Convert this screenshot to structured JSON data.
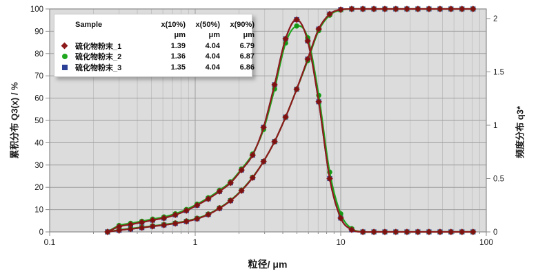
{
  "legend": {
    "headers": [
      "Sample",
      "x(10%)",
      "x(50%)",
      "x(90%)"
    ],
    "units": [
      "μm",
      "μm",
      "μm"
    ],
    "rows": [
      {
        "name": "硫化物粉末_1",
        "x10": "1.39",
        "x50": "4.04",
        "x90": "6.79",
        "marker": "diamond",
        "color": "#8e1b1b"
      },
      {
        "name": "硫化物粉末_2",
        "x10": "1.36",
        "x50": "4.04",
        "x90": "6.87",
        "marker": "circle",
        "color": "#1fa81f"
      },
      {
        "name": "硫化物粉末_3",
        "x10": "1.35",
        "x50": "4.04",
        "x90": "6.86",
        "marker": "square",
        "color": "#2b3f97"
      }
    ]
  },
  "colors": {
    "plot_bg": "#dcdcdc",
    "grid_major": "#9e9e9e",
    "grid_minor": "#c2c2c2",
    "frame": "#8a8a8a",
    "tick_text": "#1a1a1a"
  },
  "chart_data": {
    "type": "line",
    "x_axis": {
      "label": "粒径/ μm",
      "scale": "log",
      "min": 0.1,
      "max": 100,
      "major_ticks": [
        0.1,
        1,
        10,
        100
      ],
      "major_labels": [
        "0.1",
        "1",
        "10",
        "100"
      ],
      "minor_ticks": [
        0.2,
        0.3,
        0.4,
        0.5,
        0.6,
        0.7,
        0.8,
        0.9,
        2,
        3,
        4,
        5,
        6,
        7,
        8,
        9,
        20,
        30,
        40,
        50,
        60,
        70,
        80,
        90
      ]
    },
    "y_left": {
      "label": "累积分布 Q3(x) / %",
      "min": 0,
      "max": 100,
      "ticks": [
        0,
        10,
        20,
        30,
        40,
        50,
        60,
        70,
        80,
        90,
        100
      ]
    },
    "y_right": {
      "label": "频度分布 q3*",
      "min": 0,
      "max": 2.09,
      "ticks": [
        0,
        0.5,
        1,
        1.5,
        2
      ],
      "tick_labels": [
        "0",
        "0.5",
        "1",
        "1.5",
        "2"
      ]
    },
    "x": [
      0.25,
      0.3,
      0.36,
      0.43,
      0.51,
      0.61,
      0.73,
      0.87,
      1.03,
      1.23,
      1.47,
      1.75,
      2.08,
      2.48,
      2.95,
      3.51,
      4.18,
      4.98,
      5.93,
      7.06,
      8.4,
      10.0,
      11.9,
      14.2,
      16.9,
      20.1,
      23.9,
      28.5,
      33.9,
      40.4,
      48.1,
      57.2,
      68.1,
      81.1
    ],
    "series": [
      {
        "name": "硫化物粉末_1",
        "color": "#8e1b1b",
        "marker": "diamond",
        "marker_color": "#7c1212",
        "Q3": [
          0,
          0.7,
          1.3,
          1.9,
          2.5,
          3.1,
          3.8,
          4.7,
          5.9,
          7.8,
          10.6,
          14.0,
          18.5,
          24.3,
          31.6,
          40.5,
          51.5,
          64.0,
          77.5,
          91.0,
          97.7,
          99.7,
          100,
          100,
          100,
          100,
          100,
          100,
          100,
          100,
          100,
          100,
          100,
          100
        ],
        "q3": [
          0,
          0.05,
          0.07,
          0.09,
          0.11,
          0.13,
          0.16,
          0.2,
          0.25,
          0.31,
          0.38,
          0.46,
          0.58,
          0.72,
          0.98,
          1.38,
          1.81,
          1.99,
          1.79,
          1.22,
          0.5,
          0.13,
          0.02,
          0,
          0,
          0,
          0,
          0,
          0,
          0,
          0,
          0,
          0,
          0
        ]
      },
      {
        "name": "硫化物粉末_2",
        "color": "#1fa81f",
        "marker": "circle",
        "marker_color": "#169416",
        "Q3": [
          0,
          0.9,
          1.5,
          2.1,
          2.7,
          3.3,
          4.0,
          4.9,
          6.1,
          8.0,
          10.8,
          14.2,
          18.7,
          24.5,
          31.6,
          40.5,
          51.5,
          64.0,
          76.8,
          90.3,
          97.2,
          99.5,
          100,
          100,
          100,
          100,
          100,
          100,
          100,
          100,
          100,
          100,
          100,
          100
        ],
        "q3": [
          0,
          0.06,
          0.08,
          0.1,
          0.12,
          0.14,
          0.17,
          0.21,
          0.26,
          0.32,
          0.39,
          0.47,
          0.59,
          0.73,
          0.96,
          1.34,
          1.77,
          1.93,
          1.82,
          1.28,
          0.56,
          0.17,
          0.03,
          0,
          0,
          0,
          0,
          0,
          0,
          0,
          0,
          0,
          0,
          0
        ]
      },
      {
        "name": "硫化物粉末_3",
        "color": "#2b3f97",
        "marker": "square",
        "marker_color": "#24357f",
        "Q3": [
          0,
          0.7,
          1.3,
          1.9,
          2.5,
          3.1,
          3.8,
          4.7,
          5.9,
          7.8,
          10.6,
          14.0,
          18.5,
          24.3,
          31.6,
          40.5,
          51.5,
          64.0,
          77.5,
          91.0,
          97.7,
          99.7,
          100,
          100,
          100,
          100,
          100,
          100,
          100,
          100,
          100,
          100,
          100,
          100
        ],
        "q3": [
          0,
          0.05,
          0.07,
          0.09,
          0.11,
          0.13,
          0.16,
          0.2,
          0.25,
          0.31,
          0.38,
          0.46,
          0.58,
          0.72,
          0.98,
          1.38,
          1.81,
          1.99,
          1.79,
          1.22,
          0.5,
          0.13,
          0.02,
          0,
          0,
          0,
          0,
          0,
          0,
          0,
          0,
          0,
          0,
          0
        ]
      }
    ]
  }
}
